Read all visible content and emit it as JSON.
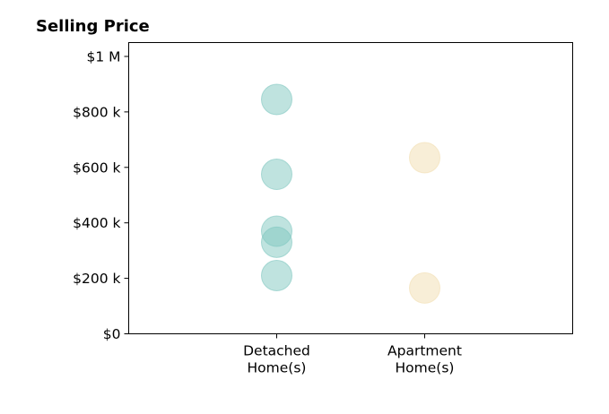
{
  "chart_data": {
    "type": "scatter",
    "title": "Selling Price",
    "xlabel": "",
    "ylabel": "",
    "categories": [
      "Detached Home(s)",
      "Apartment Home(s)"
    ],
    "xlim": [
      -1,
      2
    ],
    "ylim": [
      0,
      1050000
    ],
    "y_ticks": [
      {
        "value": 0,
        "label": "$0"
      },
      {
        "value": 200000,
        "label": "$200 k"
      },
      {
        "value": 400000,
        "label": "$400 k"
      },
      {
        "value": 600000,
        "label": "$600 k"
      },
      {
        "value": 800000,
        "label": "$800 k"
      },
      {
        "value": 1000000,
        "label": "$1 M"
      }
    ],
    "x_ticks": [
      {
        "value": 0,
        "lines": [
          "Detached",
          "Home(s)"
        ]
      },
      {
        "value": 1,
        "lines": [
          "Apartment",
          "Home(s)"
        ]
      }
    ],
    "series": [
      {
        "category_index": 0,
        "color": "#7fc7bf",
        "values": [
          845000,
          575000,
          370000,
          330000,
          210000
        ]
      },
      {
        "category_index": 1,
        "color": "#f1deb0",
        "values": [
          635000,
          165000
        ]
      }
    ],
    "grid": false,
    "legend": "none"
  }
}
